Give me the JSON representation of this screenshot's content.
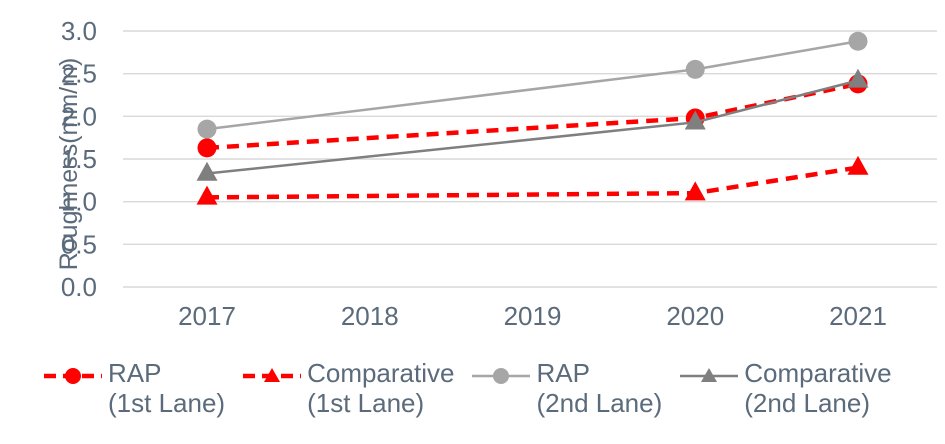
{
  "chart_data": {
    "type": "line",
    "title": "",
    "xlabel": "",
    "ylabel": "Roughness(mm/m)",
    "categories": [
      "2017",
      "2018",
      "2019",
      "2020",
      "2021"
    ],
    "ylim": [
      0.0,
      3.0
    ],
    "ytick_labels": [
      "0.0",
      "0.5",
      "1.0",
      "1.5",
      "2.0",
      "2.5",
      "3.0"
    ],
    "grid": "horizontal-only",
    "legend_position": "bottom",
    "gridline_color": "#d9d9d9",
    "axis_text_color": "#5b6b7b",
    "series": [
      {
        "name": "RAP (1st Lane)",
        "label_lines": [
          "RAP",
          "(1st Lane)"
        ],
        "color": "#ff0000",
        "line_style": "dashed",
        "marker": "circle",
        "x": [
          "2017",
          "2020",
          "2021"
        ],
        "values": [
          1.63,
          1.98,
          2.38
        ]
      },
      {
        "name": "Comparative (1st Lane)",
        "label_lines": [
          "Comparative",
          "(1st Lane)"
        ],
        "color": "#ff0000",
        "line_style": "dashed",
        "marker": "triangle",
        "x": [
          "2017",
          "2020",
          "2021"
        ],
        "values": [
          1.05,
          1.1,
          1.4
        ]
      },
      {
        "name": "RAP (2nd Lane)",
        "label_lines": [
          "RAP",
          "(2nd Lane)"
        ],
        "color": "#a6a6a6",
        "line_style": "solid",
        "marker": "circle",
        "x": [
          "2017",
          "2020",
          "2021"
        ],
        "values": [
          1.85,
          2.55,
          2.88
        ]
      },
      {
        "name": "Comparative (2nd Lane)",
        "label_lines": [
          "Comparative",
          "(2nd Lane)"
        ],
        "color": "#7f7f7f",
        "line_style": "solid",
        "marker": "triangle",
        "x": [
          "2017",
          "2020",
          "2021"
        ],
        "values": [
          1.33,
          1.93,
          2.42
        ]
      }
    ]
  }
}
